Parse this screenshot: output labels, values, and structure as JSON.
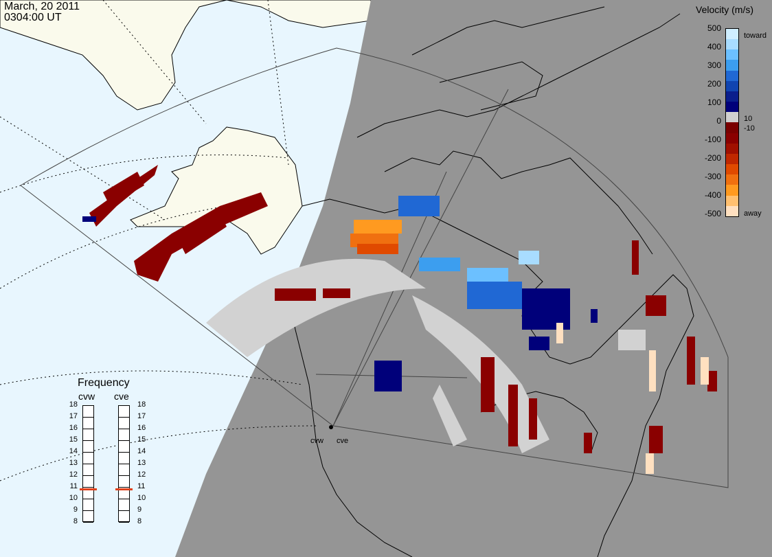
{
  "header": {
    "date": "March, 20 2011",
    "time": "0304:00 UT"
  },
  "colorbar": {
    "title": "Velocity (m/s)",
    "tick_labels": [
      "500",
      "400",
      "300",
      "200",
      "100",
      "0",
      "-100",
      "-200",
      "-300",
      "-400",
      "-500"
    ],
    "toward_label": "toward",
    "away_label": "away",
    "inner_pos_label": "10",
    "inner_neg_label": "-10",
    "colors": [
      "#cfeeff",
      "#a8dcff",
      "#6cc0ff",
      "#3c9eef",
      "#2068d4",
      "#1044b0",
      "#0a1e8c",
      "#00007a",
      "#d0d0d0",
      "#7a0000",
      "#8a0000",
      "#a01000",
      "#c02800",
      "#e04a00",
      "#f07010",
      "#ff9a20",
      "#ffc070",
      "#ffe0c0"
    ]
  },
  "frequency": {
    "title": "Frequency",
    "columns": [
      {
        "name": "cvw",
        "value": 10.8
      },
      {
        "name": "cve",
        "value": 10.8
      }
    ],
    "scale": [
      "18",
      "17",
      "16",
      "15",
      "14",
      "13",
      "12",
      "11",
      "10",
      "9",
      "8"
    ],
    "marker_color": "#e0401a"
  },
  "radars": [
    {
      "name": "cvw"
    },
    {
      "name": "cve"
    }
  ],
  "colors": {
    "sea": "#e8f6fe",
    "land_day": "#fafaec",
    "night": "#959595",
    "ground_scatter": "#d2d2d2"
  }
}
